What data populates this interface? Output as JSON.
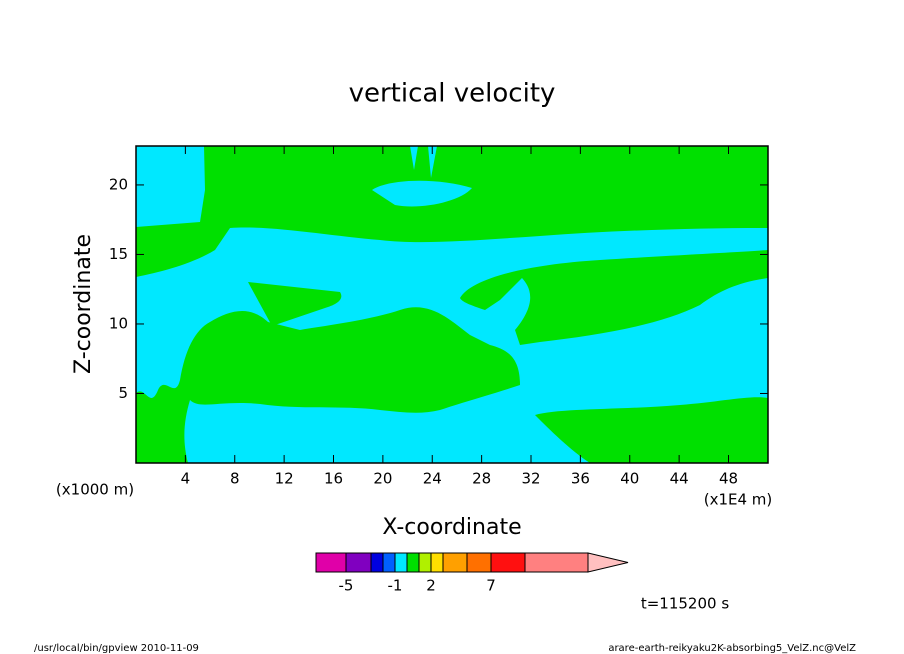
{
  "chart_data": {
    "type": "contour",
    "title": "vertical velocity",
    "x_label": "X-coordinate",
    "y_label": "Z-coordinate",
    "x_unit_left": "(x1000 m)",
    "x_unit_right": "(x1E4 m)",
    "xlim": [
      0,
      51.2
    ],
    "xticks": [
      4,
      8,
      12,
      16,
      20,
      24,
      28,
      32,
      36,
      40,
      44,
      48
    ],
    "ylim": [
      0,
      22.8
    ],
    "yticks": [
      5,
      10,
      15,
      20
    ],
    "colorbar": {
      "colors": [
        "#e000a8",
        "#8000c0",
        "#0000e0",
        "#0060ff",
        "#00e8ff",
        "#00e000",
        "#b0f000",
        "#ffe000",
        "#ffa000",
        "#ff7000",
        "#ff1010",
        "#ff8080",
        "#ffc0c0"
      ],
      "ticks": [
        -5,
        -1,
        2,
        7
      ]
    },
    "annotation": "t=115200 s",
    "footer_left": "/usr/local/bin/gpview  2010-11-09",
    "footer_right": "arare-earth-reikyaku2K-absorbing5_VelZ.nc@VelZ"
  }
}
